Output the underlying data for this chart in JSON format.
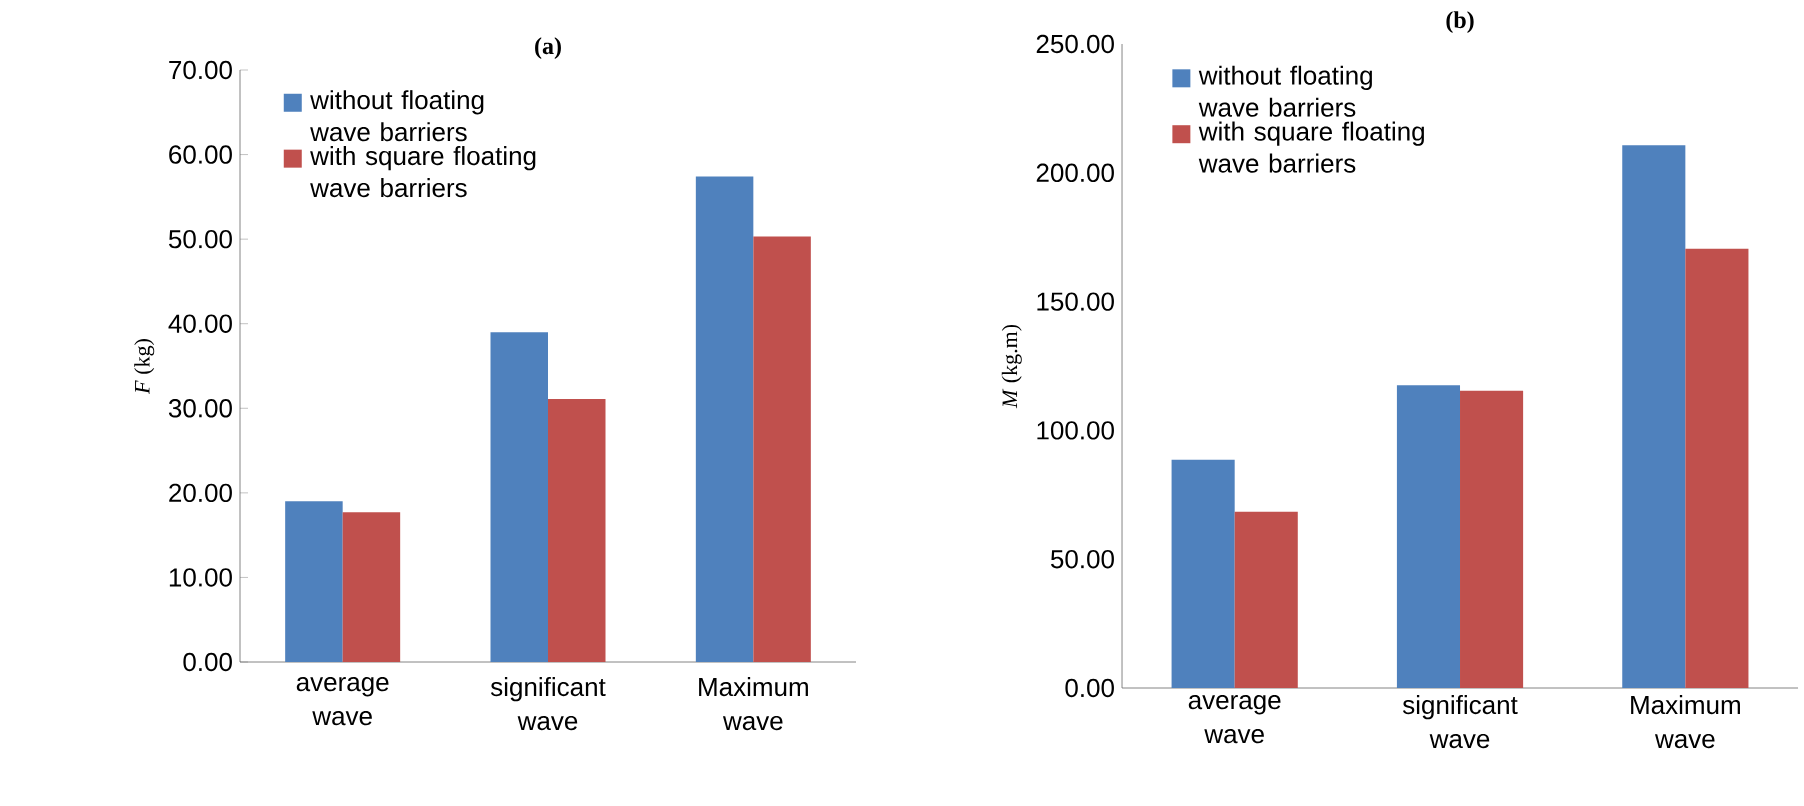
{
  "chart_data": [
    {
      "type": "bar",
      "title": "(a)",
      "ylabel": "*F* (kg)",
      "categories": [
        "average wave",
        "significant wave",
        "Maximum wave"
      ],
      "series": [
        {
          "name": "without floating wave barriers",
          "color": "#4f81bd",
          "values": [
            19.0,
            39.0,
            57.4
          ]
        },
        {
          "name": "with square floating wave barriers",
          "color": "#c0504d",
          "values": [
            17.7,
            31.1,
            50.3
          ]
        }
      ],
      "ylim": [
        0,
        70
      ],
      "yticks": [
        {
          "value": 0,
          "label": "0.00"
        },
        {
          "value": 10,
          "label": "10.00"
        },
        {
          "value": 20,
          "label": "20.00"
        },
        {
          "value": 30,
          "label": "30.00"
        },
        {
          "value": 40,
          "label": "40.00"
        },
        {
          "value": 50,
          "label": "50.00"
        },
        {
          "value": 60,
          "label": "60.00"
        },
        {
          "value": 70,
          "label": "70.00"
        }
      ],
      "legend": "top left"
    },
    {
      "type": "bar",
      "title": "(b)",
      "ylabel": "*M* (kg.m)",
      "categories": [
        "average wave",
        "significant wave",
        "Maximum wave"
      ],
      "series": [
        {
          "name": "without floating wave barriers",
          "color": "#4f81bd",
          "values": [
            88.6,
            117.5,
            210.7
          ]
        },
        {
          "name": "with square floating wave barriers",
          "color": "#c0504d",
          "values": [
            68.4,
            115.4,
            170.5
          ]
        }
      ],
      "ylim": [
        0,
        250
      ],
      "yticks": [
        {
          "value": 0,
          "label": "0.00"
        },
        {
          "value": 50,
          "label": "50.00"
        },
        {
          "value": 100,
          "label": "100.00"
        },
        {
          "value": 150,
          "label": "150.00"
        },
        {
          "value": 200,
          "label": "200.00"
        },
        {
          "value": 250,
          "label": "250.00"
        }
      ],
      "legend": "top left"
    }
  ]
}
